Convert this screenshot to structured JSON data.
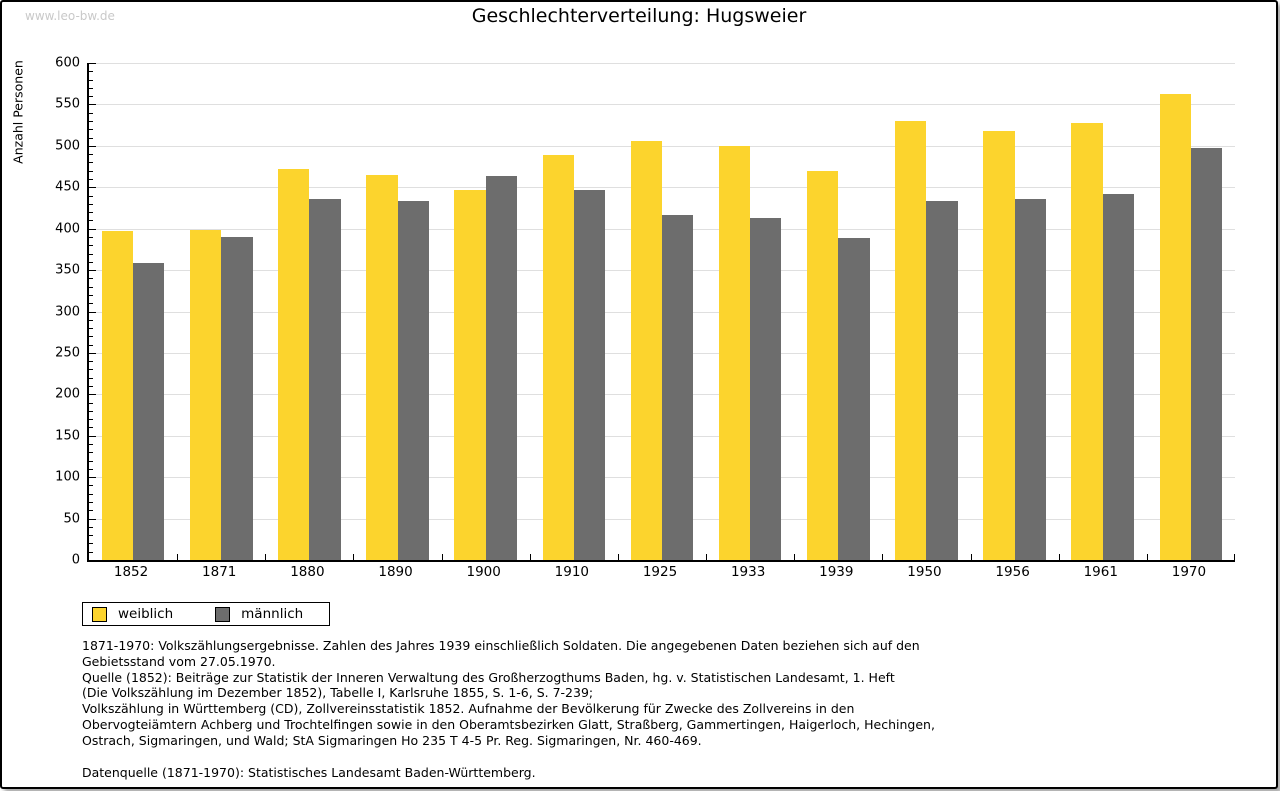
{
  "watermark": "www.leo-bw.de",
  "title": "Geschlechterverteilung: Hugsweier",
  "chart_data": {
    "type": "bar",
    "title": "Geschlechterverteilung: Hugsweier",
    "categories": [
      "1852",
      "1871",
      "1880",
      "1890",
      "1900",
      "1910",
      "1925",
      "1933",
      "1939",
      "1950",
      "1956",
      "1961",
      "1970"
    ],
    "series": [
      {
        "name": "weiblich",
        "color": "#FCD42D",
        "values": [
          397,
          398,
          472,
          465,
          447,
          489,
          506,
          500,
          470,
          530,
          518,
          527,
          563
        ]
      },
      {
        "name": "männlich",
        "color": "#6D6D6D",
        "values": [
          359,
          390,
          436,
          433,
          463,
          447,
          416,
          413,
          389,
          433,
          436,
          442,
          498
        ]
      }
    ],
    "xlabel": "",
    "ylabel": "Anzahl Personen",
    "ylim": [
      0,
      600
    ],
    "ytick_major_step": 50,
    "ytick_minor_step": 10,
    "grid": true,
    "gridline_color": "#dfdfdf",
    "legend_position": "bottom-left"
  },
  "legend": {
    "items": [
      {
        "label": "weiblich",
        "color": "#FCD42D"
      },
      {
        "label": "männlich",
        "color": "#6D6D6D"
      }
    ]
  },
  "footer": {
    "lines": [
      "1871-1970: Volkszählungsergebnisse. Zahlen des Jahres 1939 einschließlich Soldaten. Die angegebenen Daten beziehen sich auf den",
      "Gebietsstand vom 27.05.1970.",
      "Quelle (1852): Beiträge zur Statistik der Inneren Verwaltung des Großherzogthums Baden, hg. v. Statistischen Landesamt, 1. Heft",
      "(Die Volkszählung im Dezember 1852), Tabelle I, Karlsruhe 1855, S. 1-6, S. 7-239;",
      "Volkszählung in Württemberg (CD), Zollvereinsstatistik 1852. Aufnahme der Bevölkerung für Zwecke des Zollvereins in den",
      "Obervogteiämtern Achberg und Trochtelfingen sowie in den Oberamtsbezirken Glatt, Straßberg, Gammertingen, Haigerloch, Hechingen,",
      "Ostrach, Sigmaringen, und Wald; StA Sigmaringen Ho 235 T 4-5 Pr. Reg. Sigmaringen, Nr. 460-469."
    ],
    "datasource": "Datenquelle (1871-1970): Statistisches Landesamt Baden-Württemberg."
  }
}
